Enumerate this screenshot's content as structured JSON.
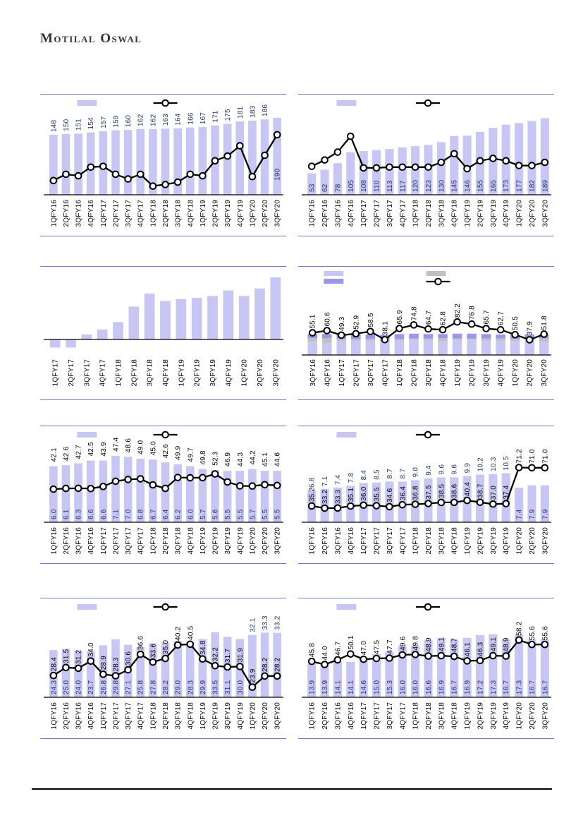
{
  "page": {
    "brand": "Motilal Oswal"
  },
  "colors": {
    "bar_light": "#c8c6f2",
    "bar_dark": "#9997e9",
    "bar_gray": "#c0c0c0",
    "value_label_navy": "#203864",
    "line_black": "#000000",
    "panel_border": "#7c79c0"
  },
  "chart_data": [
    {
      "name": "chart-row1-left",
      "type": "bar",
      "row": 0,
      "col": 0,
      "legend": "bar-line",
      "categories": [
        "1QFY16",
        "2QFY16",
        "3QFY16",
        "4QFY16",
        "1QFY17",
        "2QFY17",
        "3QFY17",
        "4QFY17",
        "1QFY18",
        "2QFY18",
        "3QFY18",
        "4QFY18",
        "1QFY19",
        "2QFY19",
        "3QFY19",
        "4QFY19",
        "1QFY20",
        "2QFY20",
        "3QFY20"
      ],
      "bars": {
        "values": [
          "148",
          "150",
          "151",
          "154",
          "157",
          "159",
          "160",
          "162",
          "162",
          "163",
          "164",
          "166",
          "167",
          "171",
          "175",
          "181",
          "183",
          "186",
          "190"
        ],
        "ylim": [
          0,
          195
        ],
        "label": "above",
        "inside_from": 18,
        "inside_raise": 20
      },
      "line": {
        "values": [
          18,
          26,
          24,
          35,
          36,
          26,
          20,
          26,
          11,
          13,
          16,
          26,
          24,
          43,
          49,
          62,
          23,
          50,
          76
        ],
        "ylim": [
          0,
          100
        ],
        "labels": false,
        "estimated": true,
        "units": "percent_of_plot_height_estimated_no_axis_labels"
      }
    },
    {
      "name": "chart-row1-right",
      "type": "bar",
      "row": 0,
      "col": 1,
      "legend": "bar-line",
      "categories": [
        "1QFY16",
        "2QFY16",
        "3QFY16",
        "4QFY16",
        "1QFY17",
        "2QFY17",
        "3QFY17",
        "4QFY17",
        "1QFY18",
        "2QFY18",
        "3QFY18",
        "4QFY18",
        "1QFY19",
        "2QFY19",
        "3QFY19",
        "4QFY19",
        "1QFY20",
        "2QFY20",
        "3QFY20"
      ],
      "bars": {
        "values": [
          "53",
          "62",
          "78",
          "105",
          "108",
          "110",
          "113",
          "117",
          "120",
          "123",
          "130",
          "145",
          "146",
          "155",
          "165",
          "173",
          "177",
          "182",
          "189"
        ],
        "ylim": [
          0,
          195
        ],
        "label": "inside"
      },
      "line": {
        "values": [
          36,
          44,
          54,
          74,
          34,
          34,
          35,
          35,
          35,
          35,
          41,
          52,
          33,
          43,
          46,
          43,
          37,
          37,
          41
        ],
        "ylim": [
          0,
          100
        ],
        "labels": false,
        "estimated": true,
        "units": "percent_of_plot_height_estimated_no_axis_labels"
      }
    },
    {
      "name": "chart-row2-left",
      "type": "bar",
      "row": 1,
      "col": 0,
      "legend": "none",
      "baseline": 103,
      "plot_top": 15,
      "xlabel_y": 131,
      "categories": [
        "1QFY17",
        "2QFY17",
        "3QFY17",
        "4QFY17",
        "1QFY18",
        "2QFY18",
        "3QFY18",
        "4QFY18",
        "1QFY19",
        "2QFY19",
        "3QFY19",
        "4QFY19",
        "1QFY20",
        "2QFY20",
        "3QFY20"
      ],
      "bars": {
        "values": [
          -13,
          -13,
          8,
          16,
          28,
          53,
          74,
          62,
          65,
          67,
          70,
          79,
          70,
          82,
          100
        ],
        "ylim": [
          0,
          100
        ],
        "label": "none",
        "estimated": true,
        "units": "percent_of_tallest_bar_estimated_no_data_labels"
      }
    },
    {
      "name": "chart-row2-right",
      "type": "bar",
      "row": 1,
      "col": 1,
      "legend": "stacked",
      "baseline": 125,
      "plot_top": 68,
      "xlabel_y": 131,
      "categories": [
        "3QFY16",
        "4QFY16",
        "1QFY17",
        "2QFY17",
        "3QFY17",
        "4QFY17",
        "1QFY18",
        "2QFY18",
        "3QFY18",
        "4QFY18",
        "1QFY19",
        "2QFY19",
        "3QFY19",
        "4QFY19",
        "1QFY20",
        "2QFY20",
        "3QFY20"
      ],
      "stack": {
        "estimated": true,
        "light": [
          33,
          30,
          35,
          34,
          35,
          34,
          36,
          38,
          37,
          35,
          38,
          38,
          36,
          35,
          36,
          30,
          32
        ],
        "gray": [
          9,
          12,
          5,
          6,
          5,
          6,
          4,
          3,
          4,
          7,
          3,
          3,
          5,
          6,
          4,
          12,
          9
        ],
        "dark": [
          10,
          10,
          11,
          11,
          11,
          10,
          12,
          12,
          11,
          10,
          12,
          12,
          11,
          10,
          10,
          9,
          10
        ]
      },
      "line": {
        "values": [
          "55.1",
          "60.6",
          "49.3",
          "52.9",
          "58.5",
          "38.1",
          "65.9",
          "74.8",
          "64.7",
          "62.8",
          "82.2",
          "76.8",
          "65.7",
          "62.7",
          "50.5",
          "37.9",
          "51.8"
        ],
        "ylim": [
          0,
          100
        ],
        "labels": true,
        "anchor": "marker"
      }
    },
    {
      "name": "chart-row3-left",
      "type": "bar",
      "row": 2,
      "col": 0,
      "legend": "bar-line",
      "categories": [
        "1QFY16",
        "2QFY16",
        "3QFY16",
        "4QFY16",
        "1QFY17",
        "2QFY17",
        "3QFY17",
        "4QFY17",
        "1QFY18",
        "2QFY18",
        "3QFY18",
        "4QFY18",
        "1QFY19",
        "2QFY19",
        "3QFY19",
        "4QFY19",
        "1QFY20",
        "2QFY20",
        "3QFY20"
      ],
      "bars": {
        "values": [
          "6.0",
          "6.1",
          "6.3",
          "6.6",
          "6.6",
          "7.1",
          "7.0",
          "6.8",
          "6.7",
          "6.4",
          "6.2",
          "6.0",
          "5.7",
          "5.6",
          "5.5",
          "5.5",
          "5.7",
          "5.5",
          "5.5"
        ],
        "ylim": [
          0,
          8
        ],
        "label": "inside"
      },
      "line": {
        "values": [
          "42.1",
          "42.6",
          "42.7",
          "42.5",
          "43.9",
          "47.4",
          "48.6",
          "49.0",
          "45.0",
          "42.6",
          "49.9",
          "49.7",
          "49.8",
          "52.3",
          "46.9",
          "44.3",
          "44.2",
          "45.1",
          "44.6"
        ],
        "ylim": [
          20,
          70
        ],
        "labels": true,
        "anchor": "min"
      }
    },
    {
      "name": "chart-row3-right",
      "type": "bar",
      "row": 2,
      "col": 1,
      "legend": "bar-line",
      "categories": [
        "1QFY16",
        "2QFY16",
        "3QFY16",
        "4QFY16",
        "1QFY17",
        "2QFY17",
        "3QFY17",
        "4QFY17",
        "1QFY18",
        "2QFY18",
        "3QFY18",
        "4QFY18",
        "1QFY19",
        "2QFY19",
        "3QFY19",
        "4QFY19",
        "1QFY20",
        "2QFY20",
        "3QFY20"
      ],
      "bars": {
        "values": [
          "6.8",
          "7.1",
          "7.4",
          "7.8",
          "8.4",
          "8.5",
          "8.7",
          "8.7",
          "9.0",
          "9.4",
          "9.6",
          "9.6",
          "9.9",
          "10.2",
          "10.3",
          "10.5",
          "7.4",
          "7.9",
          "7.9"
        ],
        "ylim": [
          0,
          16
        ],
        "label": "above",
        "inside_from": 16
      },
      "line": {
        "values": [
          "35.2",
          "33.2",
          "33.3",
          "35.1",
          "36.0",
          "35.5",
          "34.6",
          "36.4",
          "36.8",
          "37.5",
          "38.5",
          "38.6",
          "40.4",
          "38.7",
          "37.0",
          "37.4",
          "71.2",
          "71.0",
          "71.0"
        ],
        "ylim": [
          20,
          90
        ],
        "labels": true,
        "anchor": "marker"
      }
    },
    {
      "name": "chart-row4-left",
      "type": "bar",
      "row": 3,
      "col": 0,
      "legend": "bar-line",
      "categories": [
        "1QFY16",
        "2QFY16",
        "3QFY16",
        "4QFY16",
        "1QFY17",
        "2QFY17",
        "3QFY17",
        "4QFY17",
        "1QFY18",
        "2QFY18",
        "3QFY18",
        "4QFY18",
        "1QFY19",
        "2QFY19",
        "3QFY19",
        "4QFY19",
        "1QFY20",
        "2QFY20",
        "3QFY20"
      ],
      "bars": {
        "values": [
          "24.3",
          "25.0",
          "24.0",
          "23.7",
          "26.8",
          "29.8",
          "27.1",
          "25.8",
          "27.8",
          "28.2",
          "29.0",
          "28.3",
          "29.9",
          "33.5",
          "31.1",
          "30.0",
          "32.1",
          "33.3",
          "33.2"
        ],
        "ylim": [
          0,
          40
        ],
        "label": "inside",
        "above_from": 16
      },
      "line": {
        "values": [
          "28.4",
          "31.5",
          "31.2",
          "34.0",
          "28.9",
          "28.3",
          "30.6",
          "36.6",
          "33.6",
          "35.0",
          "40.2",
          "40.5",
          "34.8",
          "32.2",
          "31.7",
          "31.9",
          "23.9",
          "28.2",
          "28.2"
        ],
        "ylim": [
          20,
          50
        ],
        "labels": true,
        "anchor": "marker"
      }
    },
    {
      "name": "chart-row4-right",
      "type": "bar",
      "row": 3,
      "col": 1,
      "legend": "bar-line",
      "categories": [
        "1QFY16",
        "2QFY16",
        "3QFY16",
        "4QFY16",
        "1QFY17",
        "2QFY17",
        "3QFY17",
        "4QFY17",
        "1QFY18",
        "2QFY18",
        "3QFY18",
        "4QFY18",
        "1QFY19",
        "2QFY19",
        "3QFY19",
        "4QFY19",
        "1QFY20",
        "2QFY20",
        "3QFY20"
      ],
      "bars": {
        "values": [
          "13.9",
          "13.9",
          "14.1",
          "14.1",
          "14.6",
          "15.0",
          "15.3",
          "16.0",
          "16.0",
          "16.6",
          "16.9",
          "16.7",
          "16.9",
          "17.2",
          "17.3",
          "16.7",
          "17.3",
          "16.7",
          "16.7"
        ],
        "ylim": [
          10,
          19
        ],
        "label": "inside"
      },
      "line": {
        "values": [
          "45.8",
          "44.0",
          "46.7",
          "50.1",
          "47.0",
          "47.5",
          "47.7",
          "49.6",
          "49.8",
          "48.9",
          "49.1",
          "48.7",
          "46.1",
          "46.3",
          "49.1",
          "48.9",
          "58.2",
          "55.6",
          "55.6"
        ],
        "ylim": [
          25,
          70
        ],
        "labels": true,
        "anchor": "marker"
      }
    }
  ]
}
